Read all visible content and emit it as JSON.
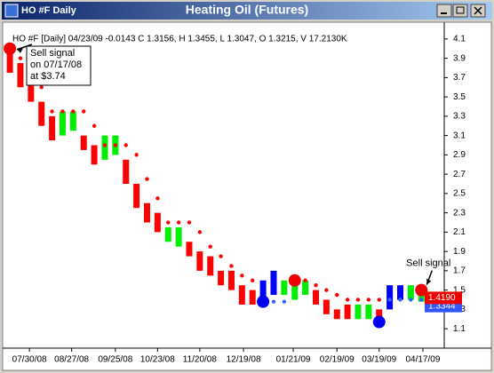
{
  "window": {
    "title": "HO #F Daily"
  },
  "chart_data": {
    "type": "price-bars",
    "title": "Heating Oil (Futures)",
    "info": "HO #F [Daily] 04/23/09 -0.0143 C 1.3156, H 1.3455, L 1.3047, O 1.3215, V 17.2130K",
    "x": [
      "07/17/08",
      "07/24/08",
      "07/31/08",
      "08/07/08",
      "08/14/08",
      "08/21/08",
      "08/28/08",
      "09/04/08",
      "09/11/08",
      "09/18/08",
      "09/25/08",
      "10/02/08",
      "10/09/08",
      "10/16/08",
      "10/23/08",
      "10/30/08",
      "11/06/08",
      "11/13/08",
      "11/20/08",
      "11/27/08",
      "12/04/08",
      "12/11/08",
      "12/18/08",
      "12/25/08",
      "01/01/09",
      "01/08/09",
      "01/15/09",
      "01/22/09",
      "01/29/09",
      "02/05/09",
      "02/12/09",
      "02/19/09",
      "02/26/09",
      "03/05/09",
      "03/12/09",
      "03/19/09",
      "03/26/09",
      "04/02/09",
      "04/09/09",
      "04/16/09",
      "04/23/09"
    ],
    "high": [
      4.0,
      3.85,
      3.7,
      3.45,
      3.3,
      3.35,
      3.35,
      3.1,
      3.0,
      3.1,
      3.1,
      2.85,
      2.6,
      2.4,
      2.3,
      2.15,
      2.15,
      2.0,
      1.9,
      1.85,
      1.7,
      1.7,
      1.55,
      1.5,
      1.6,
      1.7,
      1.6,
      1.55,
      1.6,
      1.5,
      1.4,
      1.3,
      1.35,
      1.35,
      1.35,
      1.3,
      1.55,
      1.55,
      1.55,
      1.5,
      1.35
    ],
    "low": [
      3.75,
      3.6,
      3.45,
      3.2,
      3.05,
      3.1,
      3.15,
      2.95,
      2.8,
      2.85,
      2.9,
      2.6,
      2.35,
      2.2,
      2.1,
      2.0,
      1.95,
      1.85,
      1.7,
      1.65,
      1.55,
      1.5,
      1.35,
      1.35,
      1.4,
      1.45,
      1.45,
      1.4,
      1.45,
      1.35,
      1.25,
      1.2,
      1.2,
      1.2,
      1.2,
      1.15,
      1.3,
      1.4,
      1.4,
      1.38,
      1.3
    ],
    "bar_colors": [
      "#ff0000",
      "#ff0000",
      "#ff0000",
      "#ff0000",
      "#ff0000",
      "#00ee00",
      "#00ee00",
      "#ff0000",
      "#ff0000",
      "#00ee00",
      "#00ee00",
      "#ff0000",
      "#ff0000",
      "#ff0000",
      "#ff0000",
      "#00ee00",
      "#00ee00",
      "#ff0000",
      "#ff0000",
      "#ff0000",
      "#ff0000",
      "#ff0000",
      "#ff0000",
      "#ff0000",
      "#0000ff",
      "#0000ff",
      "#00ee00",
      "#00ee00",
      "#00ee00",
      "#ff0000",
      "#ff0000",
      "#ff0000",
      "#ff0000",
      "#00ee00",
      "#00ee00",
      "#ff0000",
      "#0000ff",
      "#0000ff",
      "#00ee00",
      "#00ee00",
      "#ff0000"
    ],
    "stop": [
      4.0,
      3.9,
      3.8,
      3.6,
      3.35,
      3.35,
      3.35,
      3.35,
      3.2,
      3.0,
      3.0,
      3.0,
      2.9,
      2.65,
      2.45,
      2.2,
      2.2,
      2.2,
      2.1,
      1.95,
      1.85,
      1.75,
      1.65,
      1.6,
      1.38,
      1.38,
      1.38,
      1.6,
      1.6,
      1.55,
      1.5,
      1.45,
      1.4,
      1.4,
      1.4,
      1.4,
      1.4,
      1.4,
      1.4,
      1.4,
      1.45
    ],
    "stop_colors": [
      "#ff0000",
      "#ff0000",
      "#ff0000",
      "#ff0000",
      "#ff0000",
      "#ff0000",
      "#ff0000",
      "#ff0000",
      "#ff0000",
      "#ff0000",
      "#ff0000",
      "#ff0000",
      "#ff0000",
      "#ff0000",
      "#ff0000",
      "#ff0000",
      "#ff0000",
      "#ff0000",
      "#ff0000",
      "#ff0000",
      "#ff0000",
      "#ff0000",
      "#ff0000",
      "#ff0000",
      "#3366ff",
      "#3366ff",
      "#3366ff",
      "#ff0000",
      "#ff0000",
      "#ff0000",
      "#ff0000",
      "#ff0000",
      "#ff0000",
      "#ff0000",
      "#ff0000",
      "#ff0000",
      "#3366ff",
      "#3366ff",
      "#3366ff",
      "#3366ff",
      "#ff0000"
    ],
    "signals": [
      {
        "x": "07/17/08",
        "value": 4.0,
        "color": "#ee0000"
      },
      {
        "x": "01/01/09",
        "value": 1.38,
        "color": "#0000ee"
      },
      {
        "x": "01/22/09",
        "value": 1.6,
        "color": "#ee0000"
      },
      {
        "x": "03/19/09",
        "value": 1.17,
        "color": "#0000ee"
      },
      {
        "x": "04/16/09",
        "value": 1.5,
        "color": "#ee0000"
      }
    ],
    "annotations": [
      {
        "lines": [
          "Sell signal",
          "on 07/17/08",
          "at $3.74"
        ]
      },
      {
        "lines": [
          "Sell signal"
        ]
      }
    ],
    "last_labels": [
      {
        "value": 1.3344,
        "label": "1.3344",
        "color": "#3355ff"
      },
      {
        "value": 1.419,
        "label": "1.4190",
        "color": "#ee0000"
      }
    ],
    "xlim": [
      "07/14/08",
      "04/30/09"
    ],
    "xticks": [
      "07/30/08",
      "08/27/08",
      "09/25/08",
      "10/23/08",
      "11/20/08",
      "12/19/08",
      "01/21/09",
      "02/19/09",
      "03/19/09",
      "04/17/09"
    ],
    "ylim": [
      1.0,
      4.2
    ],
    "yticks": [
      1.1,
      1.3,
      1.5,
      1.7,
      1.9,
      2.1,
      2.3,
      2.5,
      2.7,
      2.9,
      3.1,
      3.3,
      3.5,
      3.7,
      3.9,
      4.1
    ]
  }
}
